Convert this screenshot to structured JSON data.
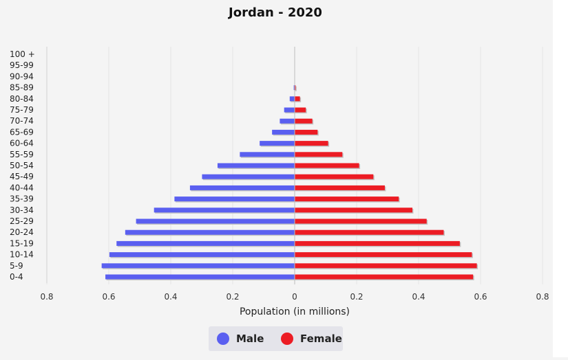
{
  "chart_data": {
    "type": "bar",
    "orientation": "horizontal",
    "title": "Jordan - 2020",
    "xlabel": "Population (in millions)",
    "ylabel": "",
    "xlim": [
      -0.8,
      0.8
    ],
    "x_tick_labels": [
      "0.8",
      "0.6",
      "0.4",
      "0.2",
      "0",
      "0.2",
      "0.4",
      "0.6",
      "0.8"
    ],
    "grid": true,
    "legend_position": "bottom",
    "categories": [
      "100 +",
      "95-99",
      "90-94",
      "85-89",
      "80-84",
      "75-79",
      "70-74",
      "65-69",
      "60-64",
      "55-59",
      "50-54",
      "45-49",
      "40-44",
      "35-39",
      "30-34",
      "25-29",
      "20-24",
      "15-19",
      "10-14",
      "5-9",
      "0-4"
    ],
    "series": [
      {
        "name": "Male",
        "color": "#5a5ff0",
        "values": [
          0,
          0,
          0,
          0.003,
          0.016,
          0.034,
          0.048,
          0.073,
          0.113,
          0.177,
          0.249,
          0.299,
          0.338,
          0.388,
          0.454,
          0.512,
          0.547,
          0.575,
          0.598,
          0.623,
          0.611
        ]
      },
      {
        "name": "Female",
        "color": "#ec1c24",
        "values": [
          0,
          0,
          0,
          0.003,
          0.017,
          0.036,
          0.057,
          0.074,
          0.108,
          0.154,
          0.208,
          0.254,
          0.291,
          0.336,
          0.38,
          0.426,
          0.481,
          0.533,
          0.572,
          0.588,
          0.576
        ]
      }
    ]
  }
}
